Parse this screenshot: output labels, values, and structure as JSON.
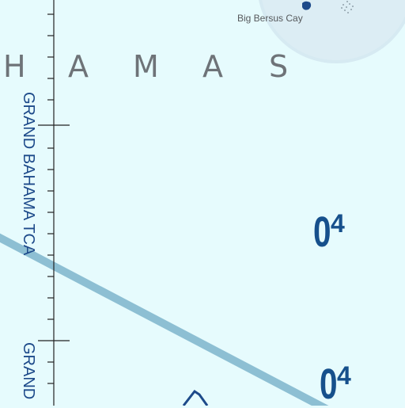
{
  "region_label": {
    "letters": [
      "H",
      "A",
      "M",
      "A",
      "S"
    ]
  },
  "island_label": "Big Bersus Cay",
  "boundary_labels": {
    "upper": "GRAND BAHAMA TCA",
    "lower": "GRAND"
  },
  "sector_codes": [
    {
      "number": "0",
      "suffix": "4"
    },
    {
      "number": "0",
      "suffix": "4"
    }
  ],
  "colors": {
    "water": "#e6fbfd",
    "island_halo": "#d6eaf2",
    "route_line": "#8dbfd3",
    "boundary_text": "#1d4a8a",
    "sector_code": "#16508c",
    "region_text": "#6e7378"
  }
}
